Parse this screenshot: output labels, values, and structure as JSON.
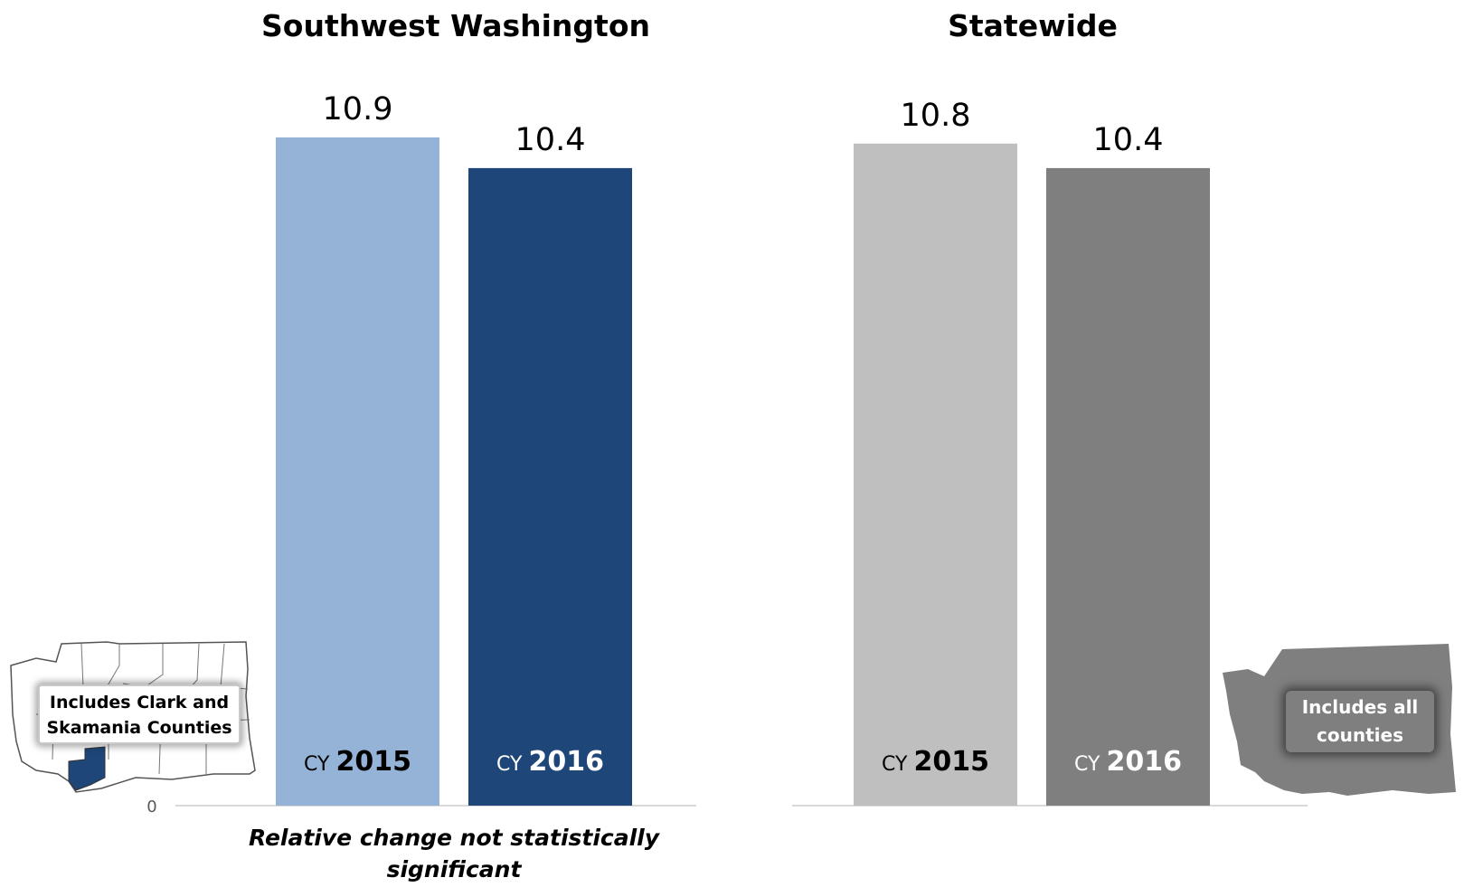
{
  "chart_data": [
    {
      "type": "bar",
      "title": "Southwest Washington",
      "categories": [
        {
          "prefix": "CY",
          "year": "2015"
        },
        {
          "prefix": "CY",
          "year": "2016"
        }
      ],
      "values": [
        10.9,
        10.4
      ],
      "value_labels": [
        "10.9",
        "10.4"
      ],
      "colors": [
        "#95B3D7",
        "#1F4678"
      ],
      "category_label_colors": [
        "#000000",
        "#ffffff"
      ],
      "ylim": [
        0,
        10.9
      ],
      "zero_tick": "0",
      "note": [
        "Relative change not statistically",
        "significant"
      ],
      "map_callout": [
        "Includes Clark and",
        "Skamania Counties"
      ]
    },
    {
      "type": "bar",
      "title": "Statewide",
      "categories": [
        {
          "prefix": "CY",
          "year": "2015"
        },
        {
          "prefix": "CY",
          "year": "2016"
        }
      ],
      "values": [
        10.8,
        10.4
      ],
      "value_labels": [
        "10.8",
        "10.4"
      ],
      "colors": [
        "#BFBFBF",
        "#7F7F7F"
      ],
      "category_label_colors": [
        "#000000",
        "#ffffff"
      ],
      "ylim": [
        0,
        10.9
      ],
      "map_callout": [
        "Includes all",
        "counties"
      ]
    }
  ],
  "colors": {
    "highlight_county": "#1F4678",
    "state_fill": "#7F7F7F",
    "axis_line": "#D9D9D9"
  }
}
